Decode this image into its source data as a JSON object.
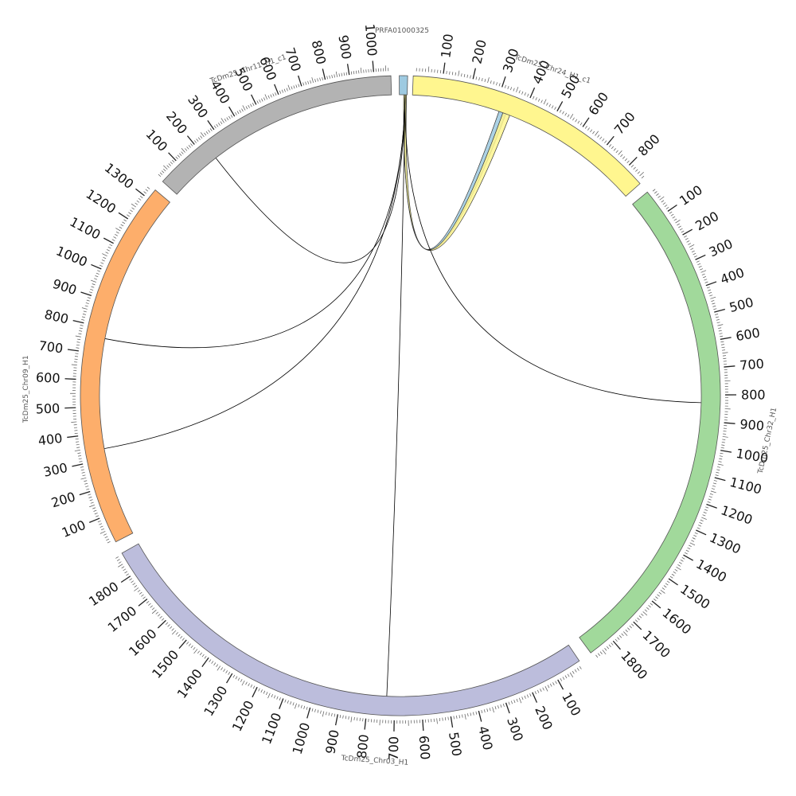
{
  "diagram": {
    "type": "circos",
    "segments": [
      {
        "id": "PRFA01000325",
        "name": "PRFA01000325",
        "color": "#9ecae1",
        "length": 12,
        "ticks": []
      },
      {
        "id": "chr24",
        "name": "TcDm25_Chr24_H1_c1",
        "color": "#fff68f",
        "length": 870,
        "ticks": [
          "100",
          "200",
          "300",
          "400",
          "500",
          "600",
          "700",
          "800"
        ]
      },
      {
        "id": "chr32",
        "name": "TcDm25_Chr32_H1",
        "color": "#a1d99b",
        "length": 1890,
        "ticks": [
          "100",
          "200",
          "300",
          "400",
          "500",
          "600",
          "700",
          "800",
          "900",
          "1000",
          "1100",
          "1200",
          "1300",
          "1400",
          "1500",
          "1600",
          "1700",
          "1800"
        ]
      },
      {
        "id": "chr03",
        "name": "TcDm25_Chr03_H1",
        "color": "#bcbddc",
        "length": 1885,
        "ticks": [
          "100",
          "200",
          "300",
          "400",
          "500",
          "600",
          "700",
          "800",
          "900",
          "1000",
          "1100",
          "1200",
          "1300",
          "1400",
          "1500",
          "1600",
          "1700",
          "1800"
        ]
      },
      {
        "id": "chr09",
        "name": "TcDm25_Chr09_H1",
        "color": "#fdae6b",
        "length": 1340,
        "ticks": [
          "100",
          "200",
          "300",
          "400",
          "500",
          "600",
          "700",
          "800",
          "900",
          "1000",
          "1100",
          "1200",
          "1300"
        ]
      },
      {
        "id": "chr11",
        "name": "TcDm25_Chr11_H1_c1",
        "color": "#b3b3b3",
        "length": 1070,
        "ticks": [
          "100",
          "200",
          "300",
          "400",
          "500",
          "600",
          "700",
          "800",
          "900",
          "1000"
        ]
      }
    ],
    "links": [
      {
        "from": "PRFA01000325",
        "to": "chr24",
        "to_pos": 330,
        "color": "#9ecae1",
        "ribbon": true
      },
      {
        "from": "PRFA01000325",
        "to": "chr24",
        "to_pos": 345,
        "color": "#fff68f",
        "ribbon": true
      },
      {
        "from": "PRFA01000325",
        "to": "chr11",
        "to_pos": 235,
        "color": "#000000",
        "ribbon": false
      },
      {
        "from": "PRFA01000325",
        "to": "chr09",
        "to_pos": 760,
        "color": "#000000",
        "ribbon": false
      },
      {
        "from": "PRFA01000325",
        "to": "chr09",
        "to_pos": 340,
        "color": "#000000",
        "ribbon": false
      },
      {
        "from": "PRFA01000325",
        "to": "chr32",
        "to_pos": 830,
        "color": "#000000",
        "ribbon": false
      },
      {
        "from": "PRFA01000325",
        "to": "chr03",
        "to_pos": 730,
        "color": "#000000",
        "ribbon": false
      }
    ]
  }
}
